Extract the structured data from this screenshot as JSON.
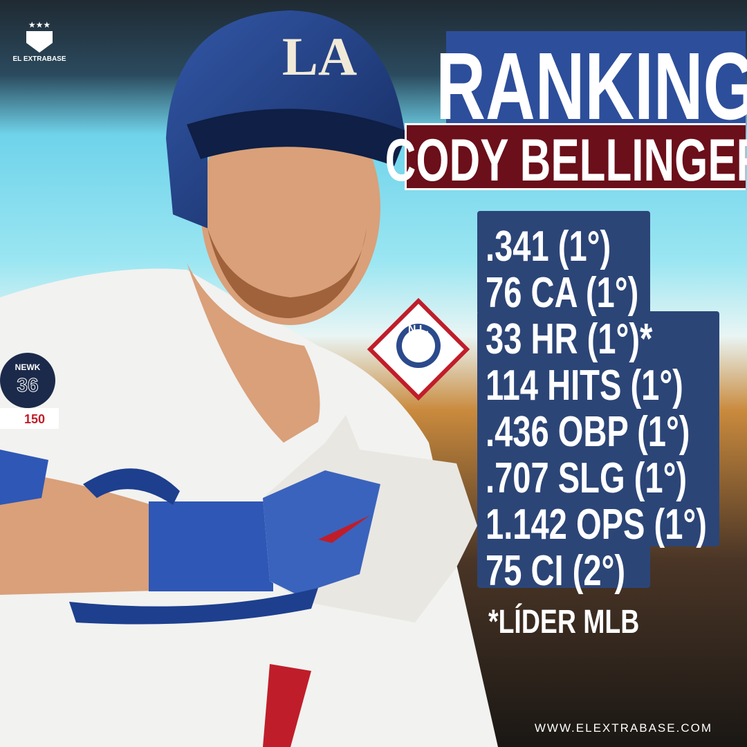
{
  "logo": {
    "text": "EL EXTRABASE"
  },
  "header": {
    "title": "RANKING",
    "subtitle": "CODY BELLINGER"
  },
  "stats": [
    ".341 (1°)",
    "76 CA (1°)",
    "33 HR (1°)*",
    "114 HITS (1°)",
    ".436 OBP (1°)",
    ".707 SLG (1°)",
    "1.142 OPS (1°)",
    "75 CI (2°)"
  ],
  "footnote": "*LÍDER MLB",
  "website": "WWW.ELEXTRABASE.COM",
  "photo": {
    "helmet": "LA",
    "patch_name": "NEWK",
    "patch_number": "36",
    "sleeve_patch": "150",
    "league_logo": "N.L."
  }
}
